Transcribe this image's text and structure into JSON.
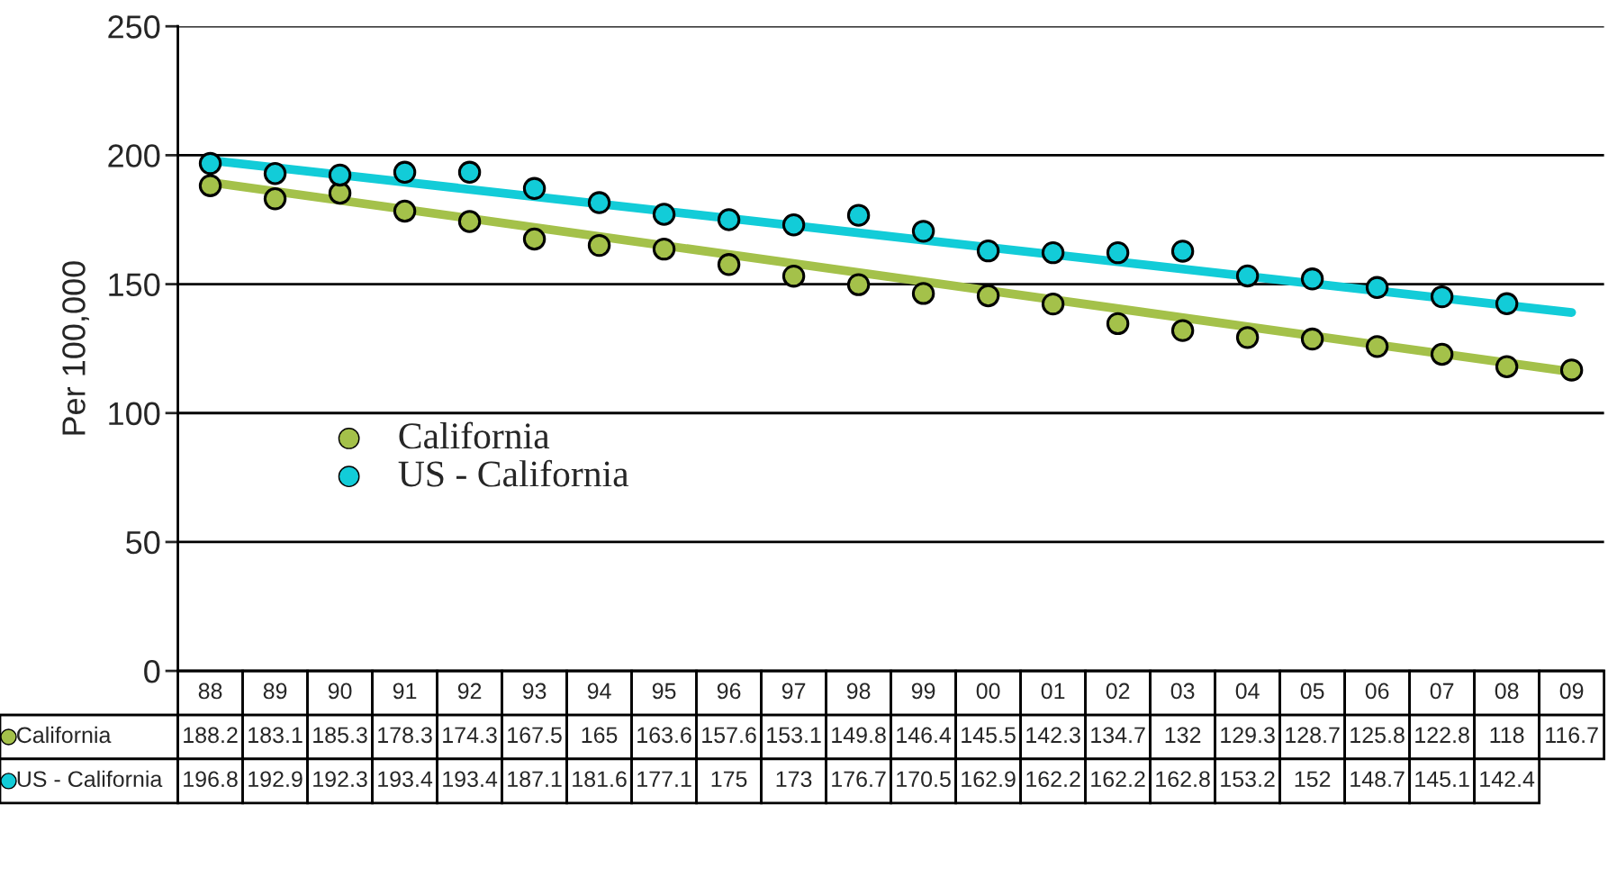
{
  "chart_data": {
    "type": "scatter",
    "ylabel": "Per 100,000",
    "categories": [
      "88",
      "89",
      "90",
      "91",
      "92",
      "93",
      "94",
      "95",
      "96",
      "97",
      "98",
      "99",
      "00",
      "01",
      "02",
      "03",
      "04",
      "05",
      "06",
      "07",
      "08",
      "09"
    ],
    "series": [
      {
        "name": "California",
        "color": "#a4c14a",
        "values": [
          188.2,
          183.1,
          185.3,
          178.3,
          174.3,
          167.5,
          165,
          163.6,
          157.6,
          153.1,
          149.8,
          146.4,
          145.5,
          142.3,
          134.7,
          132,
          129.3,
          128.7,
          125.8,
          122.8,
          118,
          116.7
        ],
        "value_labels": [
          "188.2",
          "183.1",
          "185.3",
          "178.3",
          "174.3",
          "167.5",
          "165",
          "163.6",
          "157.6",
          "153.1",
          "149.8",
          "146.4",
          "145.5",
          "142.3",
          "134.7",
          "132",
          "129.3",
          "128.7",
          "125.8",
          "122.8",
          "118",
          "116.7"
        ]
      },
      {
        "name": "US - California",
        "color": "#12ccd8",
        "values": [
          196.8,
          192.9,
          192.3,
          193.4,
          193.4,
          187.1,
          181.6,
          177.1,
          175,
          173,
          176.7,
          170.5,
          162.9,
          162.2,
          162.2,
          162.8,
          153.2,
          152,
          148.7,
          145.1,
          142.4,
          null
        ],
        "value_labels": [
          "196.8",
          "192.9",
          "192.3",
          "193.4",
          "193.4",
          "187.1",
          "181.6",
          "177.1",
          "175",
          "173",
          "176.7",
          "170.5",
          "162.9",
          "162.2",
          "162.2",
          "162.8",
          "153.2",
          "152",
          "148.7",
          "145.1",
          "142.4",
          null
        ]
      },
      {
        "type": "line",
        "marker": "none",
        "color": "#a4c14a",
        "values": [
          189.5,
          null,
          null,
          null,
          null,
          null,
          null,
          null,
          null,
          null,
          null,
          null,
          null,
          null,
          null,
          null,
          null,
          null,
          null,
          null,
          null,
          116
        ]
      },
      {
        "type": "line",
        "marker": "none",
        "color": "#12ccd8",
        "values": [
          198,
          null,
          null,
          null,
          null,
          null,
          null,
          null,
          null,
          null,
          null,
          null,
          null,
          null,
          null,
          null,
          null,
          null,
          null,
          null,
          null,
          139
        ]
      }
    ],
    "ylim": [
      0,
      250
    ],
    "yticks": [
      0,
      50,
      100,
      150,
      200,
      250
    ],
    "grid": "y",
    "legend": "left",
    "marker": "circle"
  }
}
